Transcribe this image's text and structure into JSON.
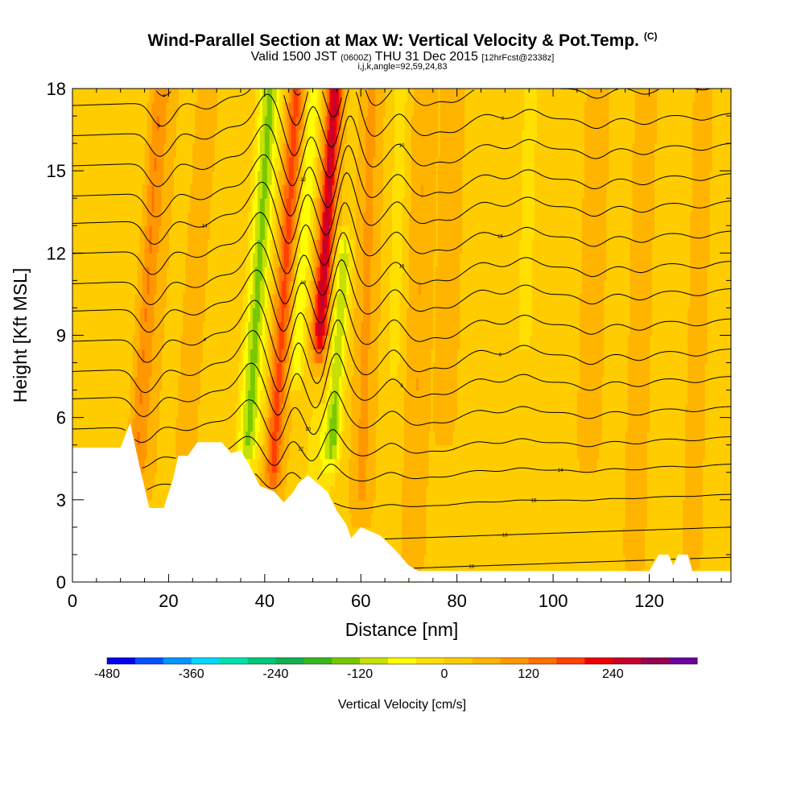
{
  "title": {
    "main": "Wind-Parallel Section at Max W: Vertical Velocity & Pot.Temp.",
    "main_unit": "(C)",
    "valid_prefix": "Valid 1500 JST",
    "valid_utc": "(0600Z)",
    "valid_date": "THU 31 Dec 2015",
    "valid_fcst": "[12hrFcst@2338z]",
    "params": "i,j,k,angle=92,59,24,83"
  },
  "colors": {
    "background_field": "#ffcc00",
    "terrain": "#ffffff",
    "contour": "#000000"
  },
  "chart_data": {
    "type": "heatmap",
    "xlabel": "Distance [nm]",
    "ylabel": "Height [Kft MSL]",
    "xlim": [
      0,
      137
    ],
    "ylim": [
      0,
      18
    ],
    "x_ticks": [
      0,
      20,
      40,
      60,
      80,
      100,
      120
    ],
    "y_ticks": [
      0,
      3,
      6,
      9,
      12,
      15,
      18
    ],
    "colorbar": {
      "label": "Vertical Velocity [cm/s]",
      "tick_labels": [
        "-480",
        "-360",
        "-240",
        "-120",
        "0",
        "120",
        "240"
      ],
      "tick_values": [
        -480,
        -360,
        -240,
        -120,
        0,
        120,
        240
      ],
      "min": -480,
      "step": 40,
      "colors": [
        "#0000f0",
        "#0050ff",
        "#0096ff",
        "#00d8ff",
        "#00e0b0",
        "#00c878",
        "#12b050",
        "#36b820",
        "#78c800",
        "#c8e000",
        "#ffff00",
        "#ffe000",
        "#ffcc00",
        "#ffb400",
        "#ff9800",
        "#ff7000",
        "#ff4000",
        "#f00000",
        "#c8002a",
        "#960050",
        "#6a00a0"
      ]
    },
    "terrain_kft": [
      [
        0,
        4.9
      ],
      [
        10,
        4.9
      ],
      [
        12,
        5.8
      ],
      [
        14,
        4.2
      ],
      [
        16,
        2.7
      ],
      [
        19,
        2.7
      ],
      [
        21,
        3.8
      ],
      [
        22,
        4.6
      ],
      [
        24,
        4.6
      ],
      [
        26,
        5.1
      ],
      [
        31,
        5.1
      ],
      [
        33,
        4.7
      ],
      [
        35,
        4.8
      ],
      [
        37,
        4.2
      ],
      [
        39,
        3.5
      ],
      [
        42,
        3.3
      ],
      [
        44,
        2.9
      ],
      [
        46,
        3.3
      ],
      [
        47,
        3.6
      ],
      [
        49,
        3.9
      ],
      [
        51,
        3.6
      ],
      [
        53,
        3.3
      ],
      [
        55,
        2.6
      ],
      [
        57,
        2.1
      ],
      [
        58,
        1.6
      ],
      [
        60,
        2.0
      ],
      [
        64,
        1.7
      ],
      [
        67,
        1.2
      ],
      [
        70,
        0.6
      ],
      [
        72,
        0.4
      ],
      [
        75,
        0.4
      ],
      [
        120,
        0.4
      ],
      [
        122,
        1.0
      ],
      [
        124,
        1.0
      ],
      [
        125,
        0.6
      ],
      [
        126,
        1.0
      ],
      [
        128,
        1.0
      ],
      [
        129,
        0.4
      ],
      [
        137,
        0.4
      ]
    ],
    "vertical_velocity_features": [
      {
        "center_nm": 15,
        "width_nm": 1.5,
        "w_cms": 90,
        "z_range": [
          3,
          18
        ]
      },
      {
        "center_nm": 17.5,
        "width_nm": 1.2,
        "w_cms": 40,
        "z_range": [
          4,
          18
        ]
      },
      {
        "center_nm": 25,
        "width_nm": 2,
        "w_cms": 35,
        "z_range": [
          5,
          18
        ]
      },
      {
        "center_nm": 30,
        "width_nm": 2,
        "w_cms": -15,
        "z_range": [
          6,
          18
        ]
      },
      {
        "center_nm": 38,
        "width_nm": 2.2,
        "w_cms": -160,
        "z_range": [
          5,
          18
        ]
      },
      {
        "center_nm": 43.5,
        "width_nm": 1.8,
        "w_cms": 140,
        "z_range": [
          4,
          18
        ]
      },
      {
        "center_nm": 47,
        "width_nm": 1.4,
        "w_cms": -110,
        "z_range": [
          8,
          18
        ]
      },
      {
        "center_nm": 51.5,
        "width_nm": 1.6,
        "w_cms": 230,
        "z_range": [
          9,
          18
        ]
      },
      {
        "center_nm": 55.5,
        "width_nm": 1.5,
        "w_cms": -150,
        "z_range": [
          5,
          12
        ]
      },
      {
        "center_nm": 53,
        "width_nm": 3,
        "w_cms": -60,
        "z_range": [
          3,
          6
        ]
      },
      {
        "center_nm": 61,
        "width_nm": 2,
        "w_cms": 60,
        "z_range": [
          3,
          18
        ]
      },
      {
        "center_nm": 67,
        "width_nm": 1.5,
        "w_cms": -50,
        "z_range": [
          8,
          18
        ]
      },
      {
        "center_nm": 72,
        "width_nm": 2,
        "w_cms": 50,
        "z_range": [
          1,
          18
        ]
      },
      {
        "center_nm": 78,
        "width_nm": 2,
        "w_cms": 40,
        "z_range": [
          6,
          18
        ]
      },
      {
        "center_nm": 85,
        "width_nm": 2,
        "w_cms": -30,
        "z_range": [
          8,
          18
        ]
      },
      {
        "center_nm": 94,
        "width_nm": 2,
        "w_cms": -45,
        "z_range": [
          9,
          18
        ]
      },
      {
        "center_nm": 108,
        "width_nm": 2,
        "w_cms": 45,
        "z_range": [
          5,
          18
        ]
      },
      {
        "center_nm": 118,
        "width_nm": 2,
        "w_cms": 35,
        "z_range": [
          1,
          18
        ]
      },
      {
        "center_nm": 130,
        "width_nm": 2,
        "w_cms": 25,
        "z_range": [
          1,
          18
        ]
      }
    ],
    "theta_base_kft": [
      0.5,
      1.6,
      2.8,
      3.9,
      4.9,
      6.0,
      7.1,
      8.1,
      9.2,
      10.3,
      11.3,
      12.4,
      13.5,
      14.5,
      15.6,
      16.7,
      17.8,
      18.9
    ],
    "contour_label_strings": [
      "18",
      "16",
      "15",
      "14",
      "12",
      "10",
      "8",
      "6",
      "4"
    ]
  }
}
